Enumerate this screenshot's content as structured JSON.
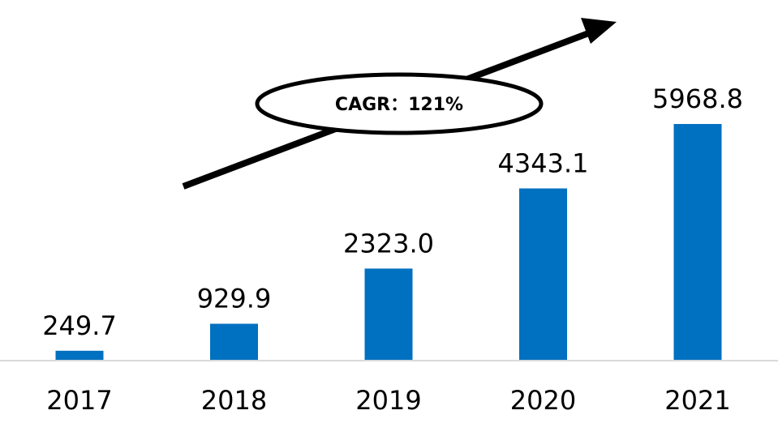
{
  "chart_data": {
    "type": "bar",
    "categories": [
      "2017",
      "2018",
      "2019",
      "2020",
      "2021"
    ],
    "values": [
      249.7,
      929.9,
      2323.0,
      4343.1,
      5968.8
    ],
    "value_labels": [
      "249.7",
      "929.9",
      "2323.0",
      "4343.1",
      "5968.8"
    ],
    "title": "",
    "xlabel": "",
    "ylabel": "",
    "ylim": [
      0,
      5968.8
    ],
    "grid": false,
    "bar_color": "#0070C0",
    "annotation": {
      "text": "CAGR：121%",
      "arrow": true
    }
  }
}
